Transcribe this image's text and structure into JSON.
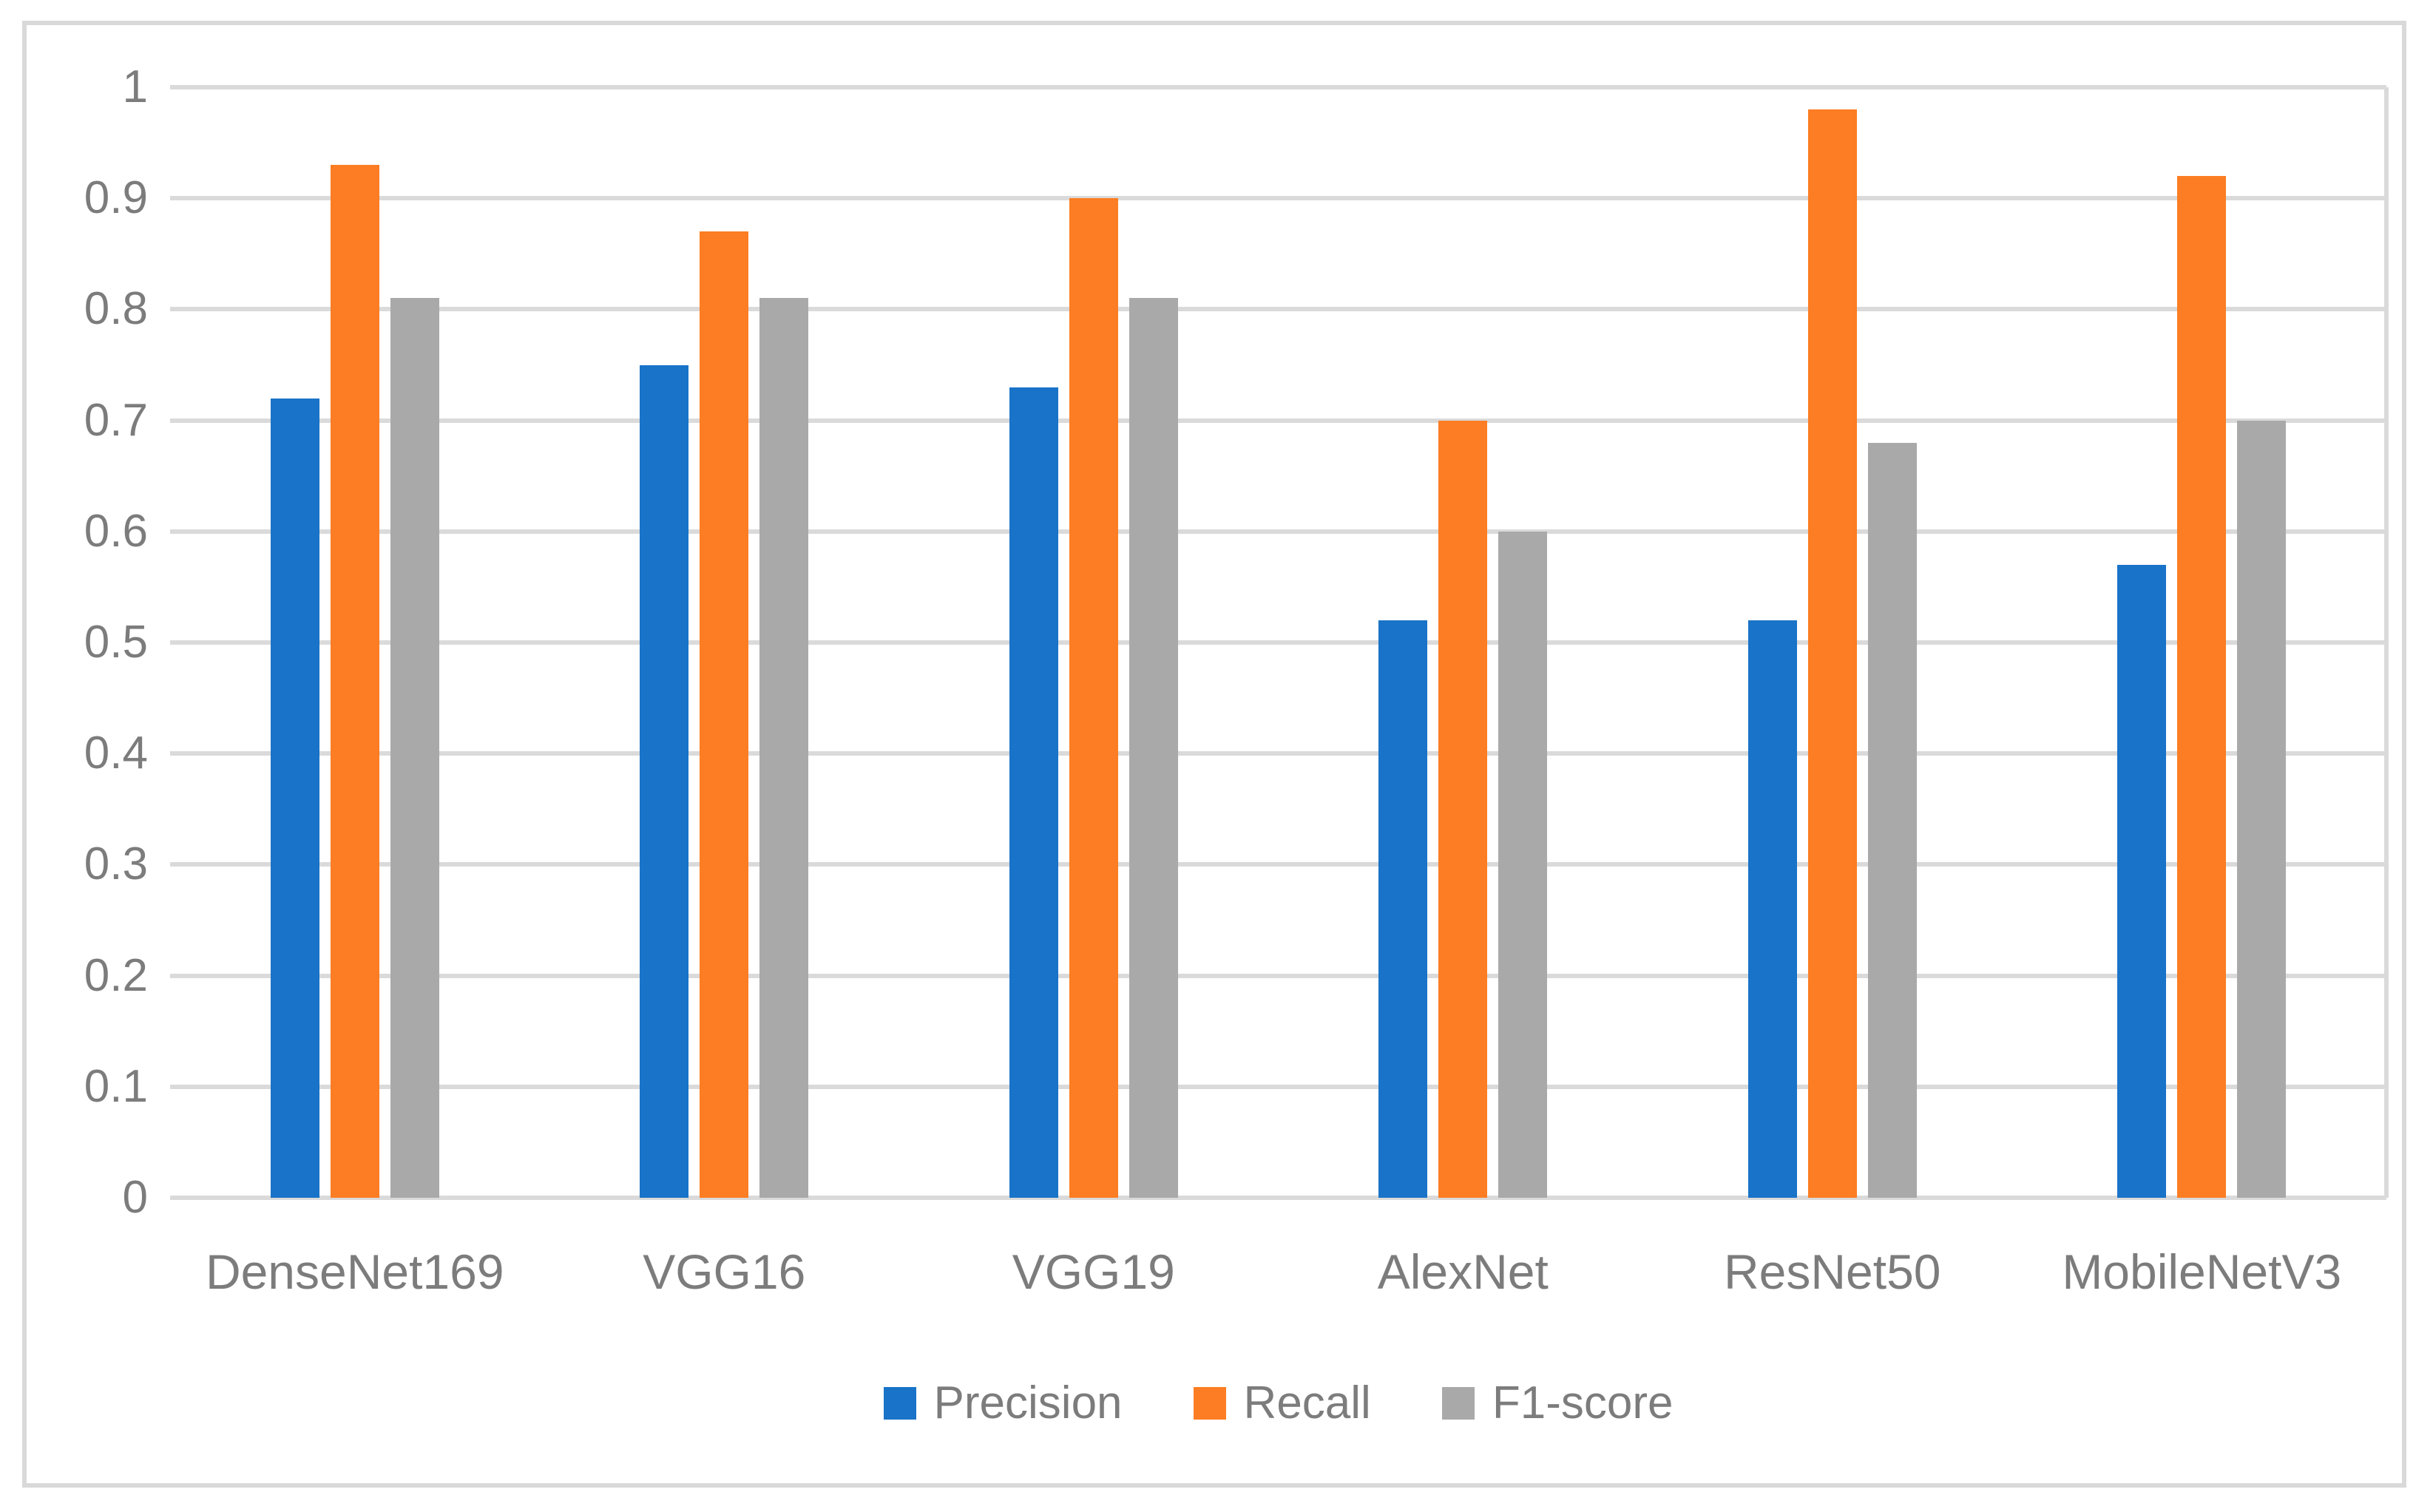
{
  "chart_data": {
    "type": "bar",
    "title": "",
    "xlabel": "",
    "ylabel": "",
    "categories": [
      "DenseNet169",
      "VGG16",
      "VGG19",
      "AlexNet",
      "ResNet50",
      "MobileNetV3"
    ],
    "series": [
      {
        "name": "Precision",
        "color": "#1973c8",
        "values": [
          0.72,
          0.75,
          0.73,
          0.52,
          0.52,
          0.57
        ]
      },
      {
        "name": "Recall",
        "color": "#fc7d23",
        "values": [
          0.93,
          0.87,
          0.9,
          0.7,
          0.98,
          0.92
        ]
      },
      {
        "name": "F1-score",
        "color": "#a9a9a9",
        "values": [
          0.81,
          0.81,
          0.81,
          0.6,
          0.68,
          0.7
        ]
      }
    ],
    "ylim": [
      0,
      1
    ],
    "yticks": [
      0,
      0.1,
      0.2,
      0.3,
      0.4,
      0.5,
      0.6,
      0.7,
      0.8,
      0.9,
      1
    ],
    "ytick_labels": [
      "0",
      "0.1",
      "0.2",
      "0.3",
      "0.4",
      "0.5",
      "0.6",
      "0.7",
      "0.8",
      "0.9",
      "1"
    ],
    "grid": "horizontal",
    "legend_position": "bottom-center"
  },
  "colors": {
    "background": "#ffffff",
    "frame_border": "#d9d9d9",
    "gridline": "#dadada",
    "axis_text": "#7c7c7c",
    "precision_blue": "#1973c8",
    "recall_orange": "#fc7d23",
    "f1_gray": "#a9a9a9"
  }
}
